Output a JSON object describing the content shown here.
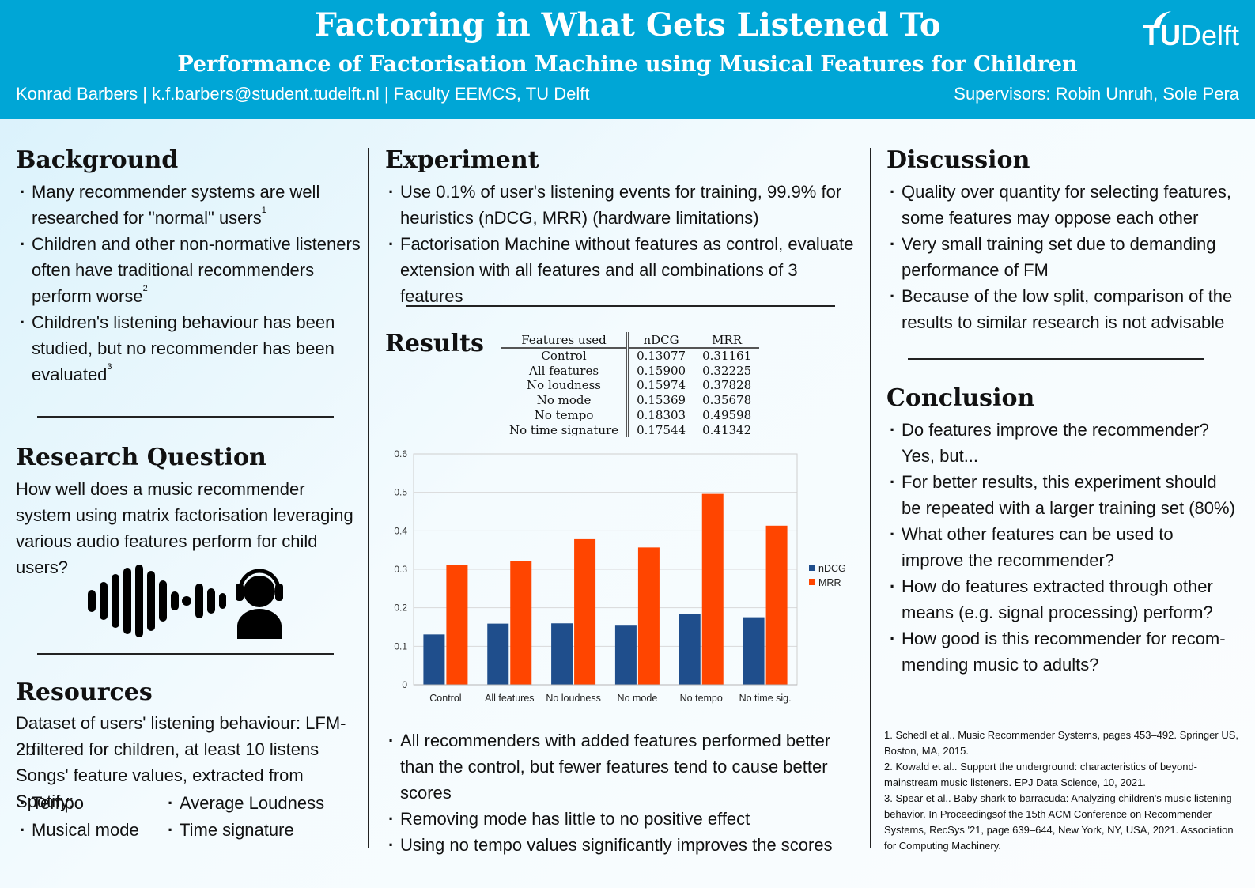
{
  "header": {
    "title": "Factoring in What Gets Listened To",
    "subtitle": "Performance of Factorisation Machine using Musical Features for Children",
    "author_line": "Konrad Barbers | k.f.barbers@student.tudelft.nl | Faculty EEMCS, TU Delft",
    "supervisors": "Supervisors: Robin Unruh, Sole Pera",
    "logo_tu": "TU",
    "logo_delft": "Delft"
  },
  "background": {
    "heading": "Background",
    "items": [
      {
        "text": "Many recommender systems are well researched for \"normal\" users",
        "ref": "1"
      },
      {
        "text": "Children and other non-normative listeners often have traditional recommenders perform worse",
        "ref": "2"
      },
      {
        "text": "Children's listening behaviour has been studied, but no recommender has been evaluated",
        "ref": "3"
      }
    ]
  },
  "research_question": {
    "heading": "Research Question",
    "text": "How well does a music recommender system using matrix factorisation leveraging various audio features perform for child users?"
  },
  "resources": {
    "heading": "Resources",
    "line1": "Dataset of users' listening behaviour: LFM-2b",
    "line2": "filtered for children, at least 10 listens",
    "line3": "Songs' feature values, extracted from Spotify:",
    "features": [
      "Tempo",
      "Average Loudness",
      "Musical mode",
      "Time signature"
    ]
  },
  "experiment": {
    "heading": "Experiment",
    "items": [
      "Use 0.1% of user's listening events for training, 99.9% for heuristics (nDCG, MRR) (hardware limitations)",
      "Factorisation Machine without features as control, evaluate extension with all features and all combinations of 3 features"
    ]
  },
  "results": {
    "heading": "Results",
    "table": {
      "headers": [
        "Features used",
        "nDCG",
        "MRR"
      ],
      "rows": [
        [
          "Control",
          "0.13077",
          "0.31161"
        ],
        [
          "All features",
          "0.15900",
          "0.32225"
        ],
        [
          "No loudness",
          "0.15974",
          "0.37828"
        ],
        [
          "No mode",
          "0.15369",
          "0.35678"
        ],
        [
          "No tempo",
          "0.18303",
          "0.49598"
        ],
        [
          "No time signature",
          "0.17544",
          "0.41342"
        ]
      ]
    },
    "findings": [
      "All recommenders with added features performed better than the control, but fewer features tend to cause better scores",
      "Removing mode has little to no positive effect",
      "Using no tempo values significantly improves the scores"
    ]
  },
  "chart_data": {
    "type": "bar",
    "categories": [
      "Control",
      "All features",
      "No loudness",
      "No mode",
      "No tempo",
      "No time sig."
    ],
    "series": [
      {
        "name": "nDCG",
        "color": "#1f4e8c",
        "values": [
          0.13077,
          0.159,
          0.15974,
          0.15369,
          0.18303,
          0.17544
        ]
      },
      {
        "name": "MRR",
        "color": "#ff4500",
        "values": [
          0.31161,
          0.32225,
          0.37828,
          0.35678,
          0.49598,
          0.41342
        ]
      }
    ],
    "ylim": [
      0,
      0.6
    ],
    "yticks": [
      "0",
      "0.1",
      "0.2",
      "0.3",
      "0.4",
      "0.5",
      "0.6"
    ],
    "grid": "horizontal",
    "legend": "right",
    "title": "",
    "xlabel": "",
    "ylabel": ""
  },
  "discussion": {
    "heading": "Discussion",
    "items": [
      "Quality over quantity for selecting features, some features may oppose each other",
      "Very small training set due to demanding performance of FM",
      "Because of the low split, comparison of the results to similar research is not advisable"
    ]
  },
  "conclusion": {
    "heading": "Conclusion",
    "items": [
      "Do features improve the recommender? Yes, but...",
      "For better results, this experiment should be repeated with a larger training set (80%)",
      "What other features can be used to improve the recommender?",
      "How do features extracted through other means (e.g. signal processing) perform?",
      "How good is this recommender for recom-mending music to adults?"
    ]
  },
  "references": [
    "1. Schedl et al.. Music Recommender Systems, pages 453–492. Springer US, Boston, MA, 2015.",
    "2. Kowald et al.. Support the underground: characteristics of beyond-mainstream music listeners. EPJ Data Science, 10, 2021.",
    "3. Spear et al.. Baby shark to barracuda: Analyzing children's music listening behavior. In Proceedingsof the 15th ACM Conference on Recommender Systems, RecSys '21, page 639–644, New York, NY, USA, 2021. Association for Computing Machinery."
  ],
  "icons": {
    "waveform": "sound-wave-icon",
    "listener": "headphones-user-icon"
  },
  "colors": {
    "header_bg": "#00a6d6",
    "ndcg": "#1f4e8c",
    "mrr": "#ff4500"
  }
}
